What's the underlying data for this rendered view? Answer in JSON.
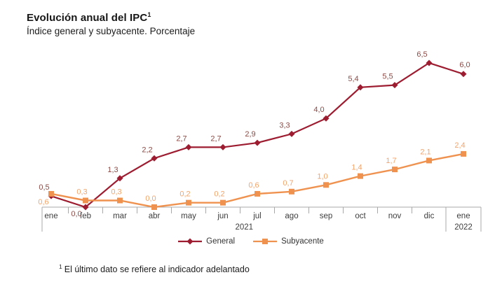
{
  "header": {
    "title": "Evolución anual del IPC",
    "title_superscript": "1",
    "subtitle": "Índice general y subyacente. Porcentaje"
  },
  "footnote": {
    "superscript": "1",
    "text": "El último dato se refiere al indicador adelantado"
  },
  "legend": {
    "items": [
      "General",
      "Subyacente"
    ]
  },
  "chart_data": {
    "type": "line",
    "title": "Evolución anual del IPC",
    "subtitle": "Índice general y subyacente. Porcentaje",
    "unit": "%",
    "categories": [
      "ene",
      "feb",
      "mar",
      "abr",
      "may",
      "jun",
      "jul",
      "ago",
      "sep",
      "oct",
      "nov",
      "dic",
      "ene"
    ],
    "year_groups": [
      {
        "label": "2021",
        "from": 0,
        "to": 11
      },
      {
        "label": "2022",
        "from": 12,
        "to": 12
      }
    ],
    "series": [
      {
        "name": "General",
        "marker": "diamond",
        "color": "#9d1c30",
        "label_color": "#8c4a45",
        "values": [
          0.5,
          0.0,
          1.3,
          2.2,
          2.7,
          2.7,
          2.9,
          3.3,
          4.0,
          5.4,
          5.5,
          6.5,
          6.0
        ],
        "labels": [
          "0,5",
          "0,0",
          "1,3",
          "2,2",
          "2,7",
          "2,7",
          "2,9",
          "3,3",
          "4,0",
          "5,4",
          "5,5",
          "6,5",
          "6,0"
        ]
      },
      {
        "name": "Subyacente",
        "marker": "square",
        "color": "#f0924f",
        "label_color": "#f3a46b",
        "values": [
          0.6,
          0.3,
          0.3,
          0.0,
          0.2,
          0.2,
          0.6,
          0.7,
          1.0,
          1.4,
          1.7,
          2.1,
          2.4
        ],
        "labels": [
          "0,6",
          "0,3",
          "0,3",
          "0,0",
          "0,2",
          "0,2",
          "0,6",
          "0,7",
          "1,0",
          "1,4",
          "1,7",
          "2,1",
          "2,4"
        ]
      }
    ],
    "ylim": [
      0,
      7
    ],
    "grid": false,
    "legend_position": "bottom",
    "axis_color": "#a8a8a8",
    "tick_label_color": "#3d3d3d"
  }
}
